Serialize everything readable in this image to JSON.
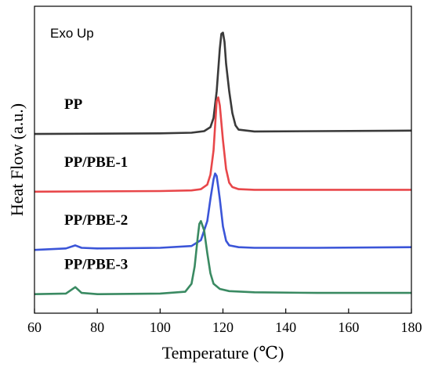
{
  "chart_data": {
    "type": "line",
    "xlabel": "Temperature (℃)",
    "ylabel": "Heat Flow (a.u.)",
    "annotation": "Exo Up",
    "xlim": [
      60,
      180
    ],
    "ylim": [
      0,
      10
    ],
    "x_ticks": [
      "60",
      "80",
      "100",
      "120",
      "140",
      "160",
      "180"
    ],
    "y_ticks_shown": false,
    "grid": false,
    "legend": "none",
    "series": [
      {
        "name": "PP",
        "color": "#3a3a3a",
        "x": [
          60,
          100,
          110,
          114,
          116,
          117,
          118,
          119,
          119.5,
          120,
          120.5,
          121,
          122,
          123,
          124,
          125,
          130,
          150,
          180
        ],
        "y": [
          5.84,
          5.86,
          5.88,
          5.93,
          6.06,
          6.36,
          7.23,
          8.62,
          9.1,
          9.14,
          8.84,
          8.13,
          7.23,
          6.52,
          6.12,
          5.98,
          5.92,
          5.93,
          5.95
        ]
      },
      {
        "name": "PP/PBE-1",
        "color": "#e8474a",
        "x": [
          60,
          100,
          110,
          113,
          115,
          116,
          117,
          117.5,
          118,
          118.5,
          119,
          120,
          121,
          122,
          123,
          125,
          130,
          150,
          180
        ],
        "y": [
          3.96,
          3.98,
          4.0,
          4.04,
          4.19,
          4.51,
          5.3,
          6.11,
          6.91,
          7.03,
          6.77,
          5.64,
          4.7,
          4.25,
          4.11,
          4.04,
          4.02,
          4.02,
          4.02
        ]
      },
      {
        "name": "PP/PBE-2",
        "color": "#3b55d8",
        "x": [
          60,
          70,
          73,
          75,
          80,
          100,
          110,
          113,
          115,
          116,
          117,
          117.5,
          118,
          118.5,
          119,
          120,
          121,
          122,
          125,
          130,
          150,
          180
        ],
        "y": [
          2.06,
          2.11,
          2.21,
          2.13,
          2.11,
          2.13,
          2.19,
          2.38,
          3.0,
          3.72,
          4.36,
          4.55,
          4.47,
          4.11,
          3.72,
          2.83,
          2.36,
          2.21,
          2.15,
          2.13,
          2.13,
          2.15
        ]
      },
      {
        "name": "PP/PBE-3",
        "color": "#3a8a62",
        "x": [
          60,
          70,
          73,
          75,
          80,
          100,
          108,
          110,
          111,
          112,
          112.5,
          113,
          114,
          115,
          116,
          117,
          119,
          122,
          130,
          150,
          180
        ],
        "y": [
          0.62,
          0.64,
          0.85,
          0.66,
          0.62,
          0.64,
          0.7,
          0.96,
          1.52,
          2.49,
          2.91,
          3.0,
          2.7,
          1.96,
          1.3,
          0.96,
          0.79,
          0.72,
          0.68,
          0.66,
          0.66
        ]
      }
    ]
  }
}
